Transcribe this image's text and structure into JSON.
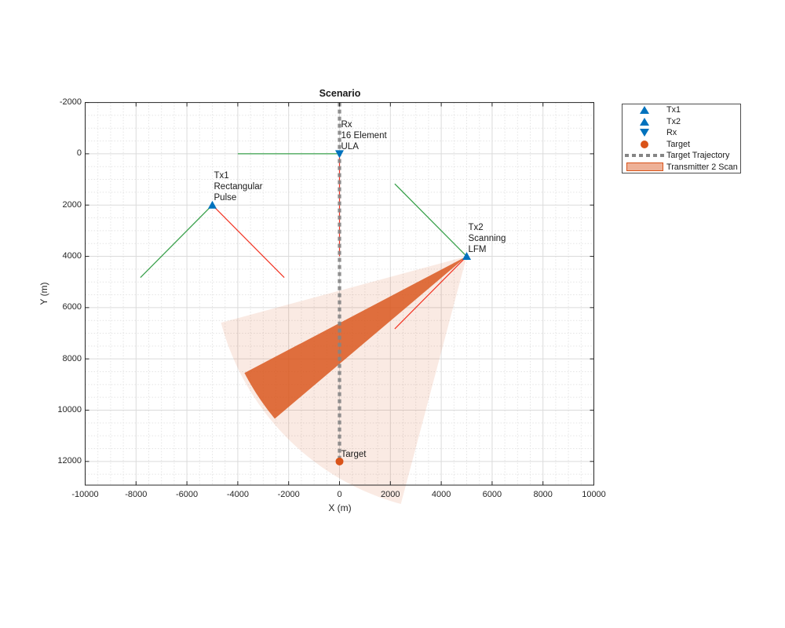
{
  "figure": {
    "title": "Scenario"
  },
  "axes": {
    "xlabel": "X (m)",
    "ylabel": "Y (m)",
    "xticks": [
      -10000,
      -8000,
      -6000,
      -4000,
      -2000,
      0,
      2000,
      4000,
      6000,
      8000,
      10000
    ],
    "yticks": [
      -2000,
      0,
      2000,
      4000,
      6000,
      8000,
      10000,
      12000
    ],
    "xlim": [
      -10000,
      10000
    ],
    "ylim": [
      -2000,
      12920
    ],
    "y_axis_direction": "reversed",
    "grid": "on",
    "minor_grid": "on",
    "minor_grid_step": 500
  },
  "colors": {
    "platform_blue": "#0072BD",
    "target_orange": "#D95319",
    "boresight_green": "#3AA14C",
    "beam_edge_red": "#F23322",
    "trajectory_gray": "#858585",
    "sector_fill": "rgba(217,83,25,0.12)",
    "beam_fill": "rgba(217,83,25,0.82)",
    "axis_color": "#262626",
    "grid_major": "#DBDBDB",
    "grid_minor": "#E4E4E4",
    "legend_patch_fill": "rgba(217,83,25,0.45)"
  },
  "legend": {
    "items": [
      {
        "label": "Tx1",
        "marker": "triangle-up",
        "color": "#0072BD"
      },
      {
        "label": "Tx2",
        "marker": "triangle-up",
        "color": "#0072BD"
      },
      {
        "label": "Rx",
        "marker": "triangle-down",
        "color": "#0072BD"
      },
      {
        "label": "Target",
        "marker": "circle",
        "color": "#D95319"
      },
      {
        "label": "Target Trajectory",
        "marker": "dashed-line",
        "color": "#858585"
      },
      {
        "label": "Transmitter 2 Scan",
        "marker": "patch",
        "color": "#D95319",
        "fill": "rgba(217,83,25,0.45)"
      }
    ]
  },
  "chart_data": {
    "type": "scatter",
    "title": "Scenario",
    "xlabel": "X (m)",
    "ylabel": "Y (m)",
    "platforms": [
      {
        "id": "tx1",
        "label_lines": [
          "Tx1",
          "Rectangular",
          "Pulse"
        ],
        "x": -5000,
        "y": 2000,
        "marker": "triangle-up",
        "color": "#0072BD"
      },
      {
        "id": "rx",
        "label_lines": [
          "Rx",
          "16 Element",
          "ULA"
        ],
        "x": 0,
        "y": 0,
        "marker": "triangle-down",
        "color": "#0072BD"
      },
      {
        "id": "tx2",
        "label_lines": [
          "Tx2",
          "Scanning",
          "LFM"
        ],
        "x": 5000,
        "y": 4000,
        "marker": "triangle-up",
        "color": "#0072BD"
      },
      {
        "id": "target",
        "label_lines": [
          "Target"
        ],
        "x": 0,
        "y": 12000,
        "marker": "circle",
        "color": "#D95319"
      }
    ],
    "boresight_lines_green": [
      {
        "from": [
          -5000,
          2000
        ],
        "to": [
          -7828,
          4828
        ]
      },
      {
        "from": [
          -4000,
          0
        ],
        "to": [
          0,
          0
        ]
      },
      {
        "from": [
          5000,
          4000
        ],
        "to": [
          2172,
          1172
        ]
      }
    ],
    "beam_edge_lines_red": [
      {
        "from": [
          -5000,
          2000
        ],
        "to": [
          -2172,
          4828
        ]
      },
      {
        "from": [
          0,
          0
        ],
        "to": [
          0,
          4000
        ]
      },
      {
        "from": [
          5000,
          4000
        ],
        "to": [
          2172,
          6828
        ]
      }
    ],
    "target_trajectory": {
      "x": 0,
      "y_from": -2000,
      "y_to": 12000,
      "style": "dashed"
    },
    "transmitter2_scan_sector": {
      "center": [
        5000,
        4000
      ],
      "radius": 10000,
      "angle_start_deg": 105,
      "angle_end_deg": 165
    },
    "transmitter2_current_beam": {
      "center": [
        5000,
        4000
      ],
      "radius": 9850,
      "angle_start_deg": 140,
      "angle_end_deg": 152.5
    },
    "angle_convention": "degrees clockwise from +X axis with +Y pointing down (Y axis reversed)"
  }
}
